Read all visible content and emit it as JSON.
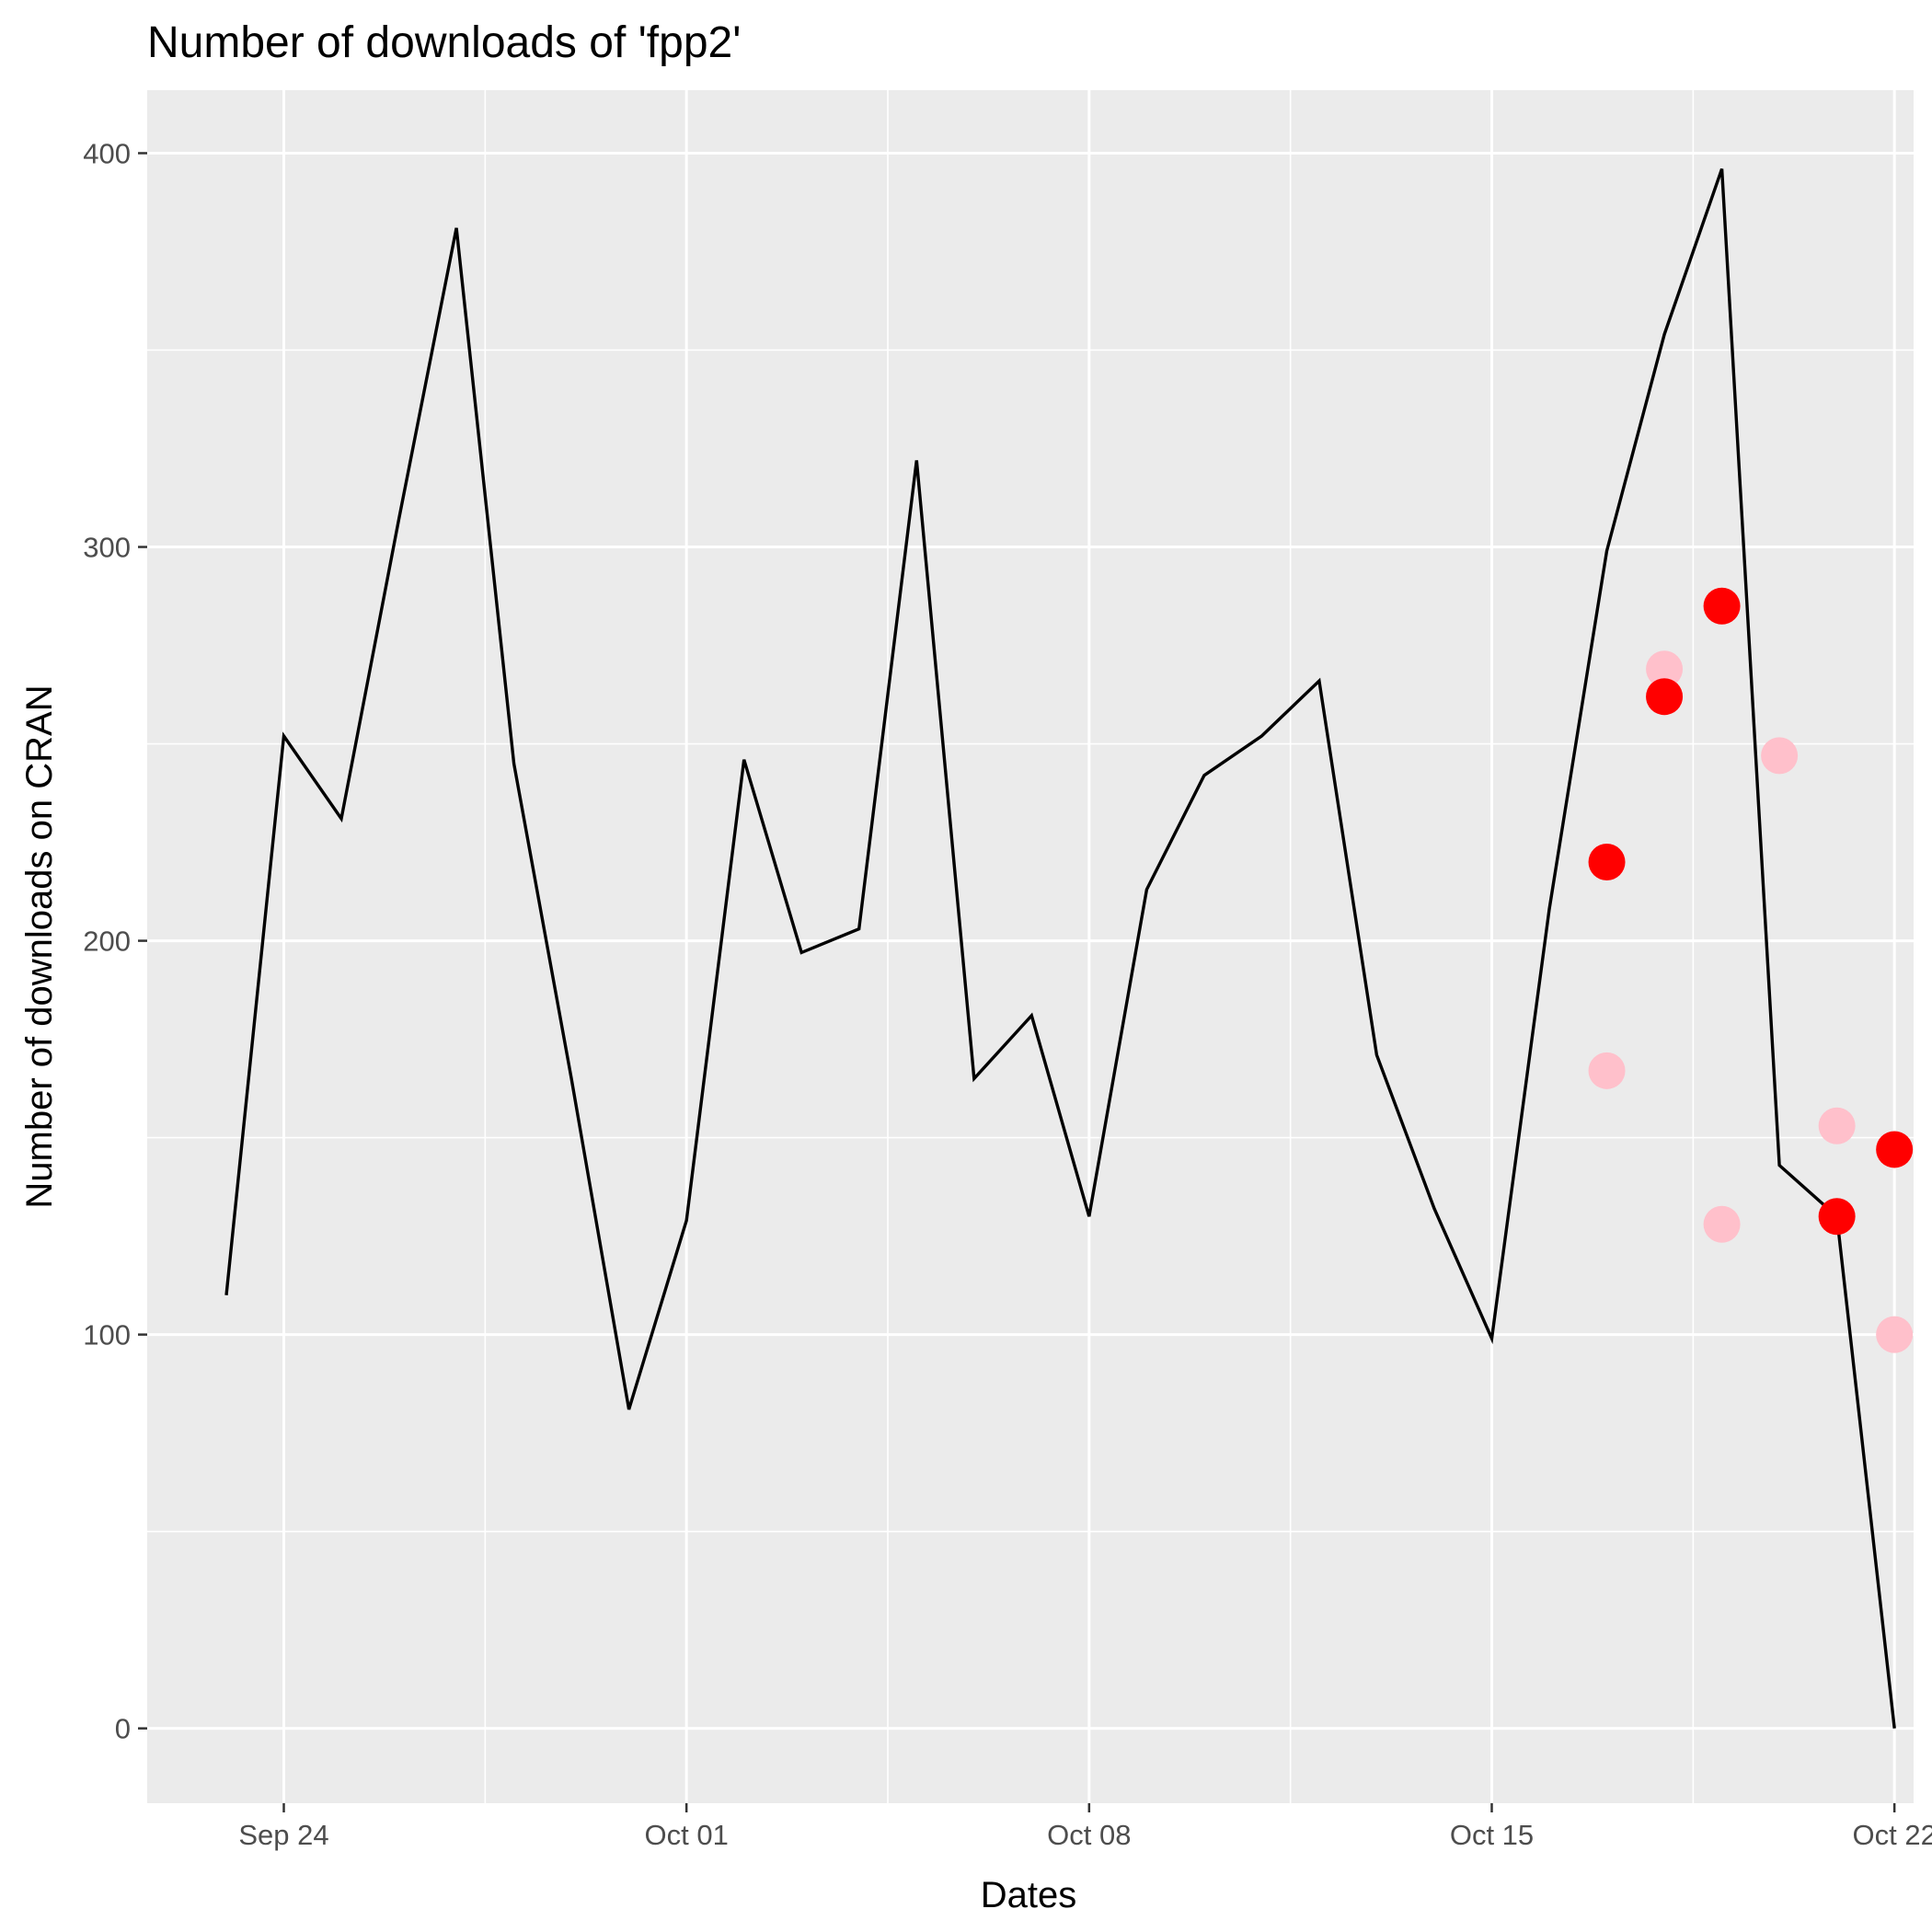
{
  "chart_data": {
    "type": "line",
    "title": "Number of downloads of 'fpp2'",
    "xlabel": "Dates",
    "ylabel": "Number of downloads on CRAN",
    "x_tick_labels": [
      {
        "date": "2017-09-24",
        "label": "Sep 24"
      },
      {
        "date": "2017-10-01",
        "label": "Oct 01"
      },
      {
        "date": "2017-10-08",
        "label": "Oct 08"
      },
      {
        "date": "2017-10-15",
        "label": "Oct 15"
      },
      {
        "date": "2017-10-22",
        "label": "Oct 22"
      }
    ],
    "y_ticks": [
      0,
      100,
      200,
      300,
      400
    ],
    "xlim": [
      "2017-09-21T15:00",
      "2017-10-22T08:00"
    ],
    "ylim": [
      -19,
      416
    ],
    "grid": true,
    "background_color": "#ebebeb",
    "grid_color": "#ffffff",
    "line_series": {
      "color": "#000000",
      "points": [
        {
          "x": "2017-09-23",
          "y": 110
        },
        {
          "x": "2017-09-24",
          "y": 252
        },
        {
          "x": "2017-09-25",
          "y": 231
        },
        {
          "x": "2017-09-26",
          "y": 307
        },
        {
          "x": "2017-09-27",
          "y": 381
        },
        {
          "x": "2017-09-28",
          "y": 245
        },
        {
          "x": "2017-09-29",
          "y": 165
        },
        {
          "x": "2017-09-30",
          "y": 81
        },
        {
          "x": "2017-10-01",
          "y": 129
        },
        {
          "x": "2017-10-02",
          "y": 246
        },
        {
          "x": "2017-10-03",
          "y": 197
        },
        {
          "x": "2017-10-04",
          "y": 203
        },
        {
          "x": "2017-10-05",
          "y": 322
        },
        {
          "x": "2017-10-06",
          "y": 165
        },
        {
          "x": "2017-10-07",
          "y": 181
        },
        {
          "x": "2017-10-08",
          "y": 130
        },
        {
          "x": "2017-10-09",
          "y": 213
        },
        {
          "x": "2017-10-10",
          "y": 242
        },
        {
          "x": "2017-10-11",
          "y": 252
        },
        {
          "x": "2017-10-12",
          "y": 266
        },
        {
          "x": "2017-10-13",
          "y": 171
        },
        {
          "x": "2017-10-14",
          "y": 132
        },
        {
          "x": "2017-10-15",
          "y": 99
        },
        {
          "x": "2017-10-16",
          "y": 208
        },
        {
          "x": "2017-10-17",
          "y": 299
        },
        {
          "x": "2017-10-18",
          "y": 354
        },
        {
          "x": "2017-10-19",
          "y": 396
        },
        {
          "x": "2017-10-20",
          "y": 143
        },
        {
          "x": "2017-10-21",
          "y": 130
        },
        {
          "x": "2017-10-22",
          "y": 0
        }
      ]
    },
    "point_series": [
      {
        "color": "#ffc0cb",
        "points": [
          {
            "x": "2017-10-17",
            "y": 167
          },
          {
            "x": "2017-10-18",
            "y": 269
          },
          {
            "x": "2017-10-19",
            "y": 128
          },
          {
            "x": "2017-10-20",
            "y": 247
          },
          {
            "x": "2017-10-21",
            "y": 153
          },
          {
            "x": "2017-10-22",
            "y": 100
          }
        ]
      },
      {
        "color": "#ff0000",
        "points": [
          {
            "x": "2017-10-17",
            "y": 220
          },
          {
            "x": "2017-10-18",
            "y": 262
          },
          {
            "x": "2017-10-19",
            "y": 285
          },
          {
            "x": "2017-10-21",
            "y": 130
          },
          {
            "x": "2017-10-22",
            "y": 147
          }
        ]
      }
    ]
  }
}
